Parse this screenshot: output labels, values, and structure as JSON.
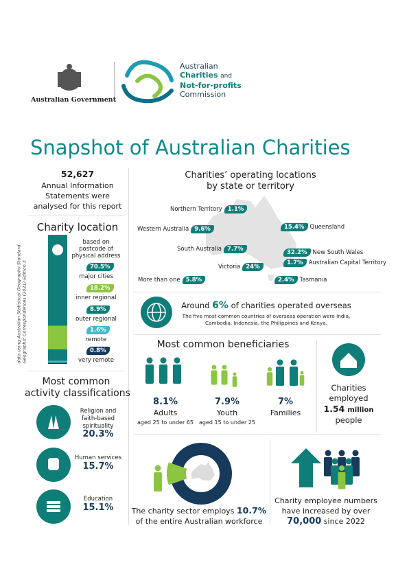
{
  "header": {
    "government": "Australian Government",
    "commission": [
      "Australian",
      "Charities",
      "and",
      "Not-for-profits",
      "Commission"
    ]
  },
  "title": "Snapshot of Australian Charities",
  "statements": {
    "count": "52,627",
    "text": [
      "Annual Information",
      "Statements were",
      "analysed for this report"
    ]
  },
  "location": {
    "title": "Charity location",
    "basis": [
      "based on",
      "postcode of",
      "physical address"
    ],
    "note": [
      "data using Australian Statistical Geography Standard",
      "Geographic Correspondences (2021) Edition 3"
    ],
    "categories": [
      "major cities",
      "inner regional",
      "outer regional",
      "remote",
      "very remote"
    ],
    "values": [
      70.5,
      18.2,
      8.9,
      1.6,
      0.8
    ],
    "value_labels": [
      "70.5%",
      "18.2%",
      "8.9%",
      "1.6%",
      "0.8%"
    ],
    "colors": [
      "#0f7d78",
      "#8cc541",
      "#0f7d78",
      "#45b9c6",
      "#173a5c"
    ]
  },
  "activities": {
    "title": [
      "Most common",
      "activity classifications"
    ],
    "items": [
      {
        "name": [
          "Religion and",
          "faith-based",
          "spirituality"
        ],
        "value": "20.3%"
      },
      {
        "name": [
          "Human services"
        ],
        "value": "15.7%"
      },
      {
        "name": [
          "Education"
        ],
        "value": "15.1%"
      }
    ]
  },
  "states": {
    "title": [
      "Charities’ operating locations",
      "by state or territory"
    ],
    "items": [
      {
        "name": "Northern Territory",
        "value": "1.1%"
      },
      {
        "name": "Western Australia",
        "value": "9.6%"
      },
      {
        "name": "South Australia",
        "value": "7.7%"
      },
      {
        "name": "Victoria",
        "value": "24%"
      },
      {
        "name": "More than one",
        "value": "5.8%"
      },
      {
        "name": "Queensland",
        "value": "15.4%"
      },
      {
        "name": "New South Wales",
        "value": "32.2%"
      },
      {
        "name": "Australian Capital Territory",
        "value": "1.7%"
      },
      {
        "name": "Tasmania",
        "value": "2.4%"
      }
    ]
  },
  "overseas": {
    "before": "Around",
    "value": "6%",
    "after": "of charities operated overseas",
    "detail": [
      "The five most common countries of overseas operation were India,",
      "Cambodia, Indonesia, the Philippines and Kenya."
    ]
  },
  "beneficiaries": {
    "title": "Most common beneficiaries",
    "items": [
      {
        "value": "8.1%",
        "name": "Adults",
        "detail": "aged 25 to under 65"
      },
      {
        "value": "7.9%",
        "name": "Youth",
        "detail": "aged 15 to under 25"
      },
      {
        "value": "7%",
        "name": "Families"
      }
    ]
  },
  "employed": {
    "lines": [
      "Charities",
      "employed"
    ],
    "value": "1.54",
    "unit": "million",
    "after": "people"
  },
  "workforce": {
    "before": "The charity sector employs",
    "share": 10.7,
    "share_label": "10.7%",
    "after": "of the entire Australian workforce"
  },
  "growth": {
    "lines": [
      "Charity employee numbers",
      "have increased by over"
    ],
    "value": "70,000",
    "after": "since 2022"
  }
}
